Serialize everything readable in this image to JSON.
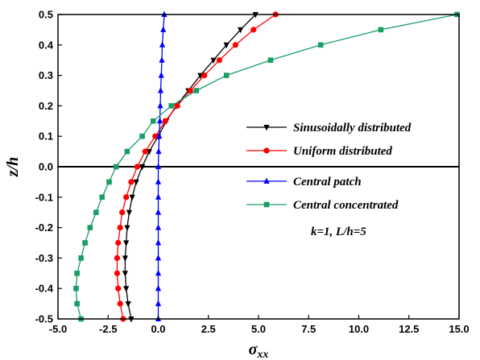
{
  "chart_data": {
    "type": "line",
    "xlabel": "σ",
    "xlabel_sub": "xx",
    "ylabel": "z/h",
    "xlim": [
      -5.0,
      15.0
    ],
    "ylim": [
      -0.5,
      0.5
    ],
    "xticks": [
      "-5.0",
      "-2.5",
      "0.0",
      "2.5",
      "5.0",
      "7.5",
      "10.0",
      "12.5",
      "15.0"
    ],
    "yticks": [
      "-0.5",
      "-0.4",
      "-0.3",
      "-0.2",
      "-0.1",
      "0.0",
      "0.1",
      "0.2",
      "0.3",
      "0.4",
      "0.5"
    ],
    "zero_line": true,
    "legend_position": "right",
    "annotation": "k=1, L/h=5",
    "series": [
      {
        "name": "Sinusoidally distributed",
        "color": "#000000",
        "marker": "triangle-down",
        "points": [
          [
            -1.35,
            -0.5
          ],
          [
            -1.5,
            -0.45
          ],
          [
            -1.6,
            -0.4
          ],
          [
            -1.65,
            -0.35
          ],
          [
            -1.65,
            -0.3
          ],
          [
            -1.6,
            -0.25
          ],
          [
            -1.55,
            -0.2
          ],
          [
            -1.45,
            -0.15
          ],
          [
            -1.3,
            -0.1
          ],
          [
            -1.1,
            -0.05
          ],
          [
            -0.8,
            0.0
          ],
          [
            -0.45,
            0.05
          ],
          [
            0.0,
            0.1
          ],
          [
            0.4,
            0.15
          ],
          [
            0.9,
            0.2
          ],
          [
            1.5,
            0.25
          ],
          [
            2.1,
            0.3
          ],
          [
            2.75,
            0.35
          ],
          [
            3.4,
            0.4
          ],
          [
            4.1,
            0.45
          ],
          [
            4.85,
            0.5
          ]
        ]
      },
      {
        "name": "Uniform distributed",
        "color": "#ff0000",
        "marker": "circle",
        "points": [
          [
            -1.75,
            -0.5
          ],
          [
            -1.9,
            -0.45
          ],
          [
            -2.0,
            -0.4
          ],
          [
            -2.05,
            -0.35
          ],
          [
            -2.05,
            -0.3
          ],
          [
            -2.0,
            -0.25
          ],
          [
            -1.9,
            -0.2
          ],
          [
            -1.8,
            -0.15
          ],
          [
            -1.6,
            -0.1
          ],
          [
            -1.35,
            -0.05
          ],
          [
            -1.05,
            0.0
          ],
          [
            -0.65,
            0.05
          ],
          [
            -0.15,
            0.1
          ],
          [
            0.35,
            0.15
          ],
          [
            0.95,
            0.2
          ],
          [
            1.6,
            0.25
          ],
          [
            2.3,
            0.3
          ],
          [
            3.05,
            0.35
          ],
          [
            3.85,
            0.4
          ],
          [
            4.75,
            0.45
          ],
          [
            5.85,
            0.5
          ]
        ]
      },
      {
        "name": "Central patch",
        "color": "#0000ff",
        "marker": "triangle-up",
        "points": [
          [
            0.0,
            -0.5
          ],
          [
            0.0,
            -0.45
          ],
          [
            0.0,
            -0.4
          ],
          [
            0.0,
            -0.35
          ],
          [
            0.0,
            -0.3
          ],
          [
            0.0,
            -0.25
          ],
          [
            0.0,
            -0.2
          ],
          [
            0.0,
            -0.15
          ],
          [
            0.0,
            -0.1
          ],
          [
            0.0,
            -0.05
          ],
          [
            0.0,
            0.0
          ],
          [
            0.02,
            0.05
          ],
          [
            0.05,
            0.1
          ],
          [
            0.08,
            0.15
          ],
          [
            0.1,
            0.2
          ],
          [
            0.12,
            0.25
          ],
          [
            0.15,
            0.3
          ],
          [
            0.18,
            0.35
          ],
          [
            0.2,
            0.4
          ],
          [
            0.25,
            0.45
          ],
          [
            0.3,
            0.5
          ]
        ]
      },
      {
        "name": "Central concentrated",
        "color": "#1a9e66",
        "marker": "square",
        "points": [
          [
            -3.85,
            -0.5
          ],
          [
            -4.05,
            -0.45
          ],
          [
            -4.1,
            -0.4
          ],
          [
            -4.05,
            -0.35
          ],
          [
            -3.85,
            -0.3
          ],
          [
            -3.65,
            -0.25
          ],
          [
            -3.4,
            -0.2
          ],
          [
            -3.1,
            -0.15
          ],
          [
            -2.8,
            -0.1
          ],
          [
            -2.45,
            -0.05
          ],
          [
            -2.1,
            0.0
          ],
          [
            -1.55,
            0.05
          ],
          [
            -0.8,
            0.1
          ],
          [
            -0.25,
            0.15
          ],
          [
            0.65,
            0.2
          ],
          [
            1.9,
            0.25
          ],
          [
            3.4,
            0.3
          ],
          [
            5.6,
            0.35
          ],
          [
            8.1,
            0.4
          ],
          [
            11.1,
            0.45
          ],
          [
            14.9,
            0.5
          ]
        ]
      }
    ]
  }
}
